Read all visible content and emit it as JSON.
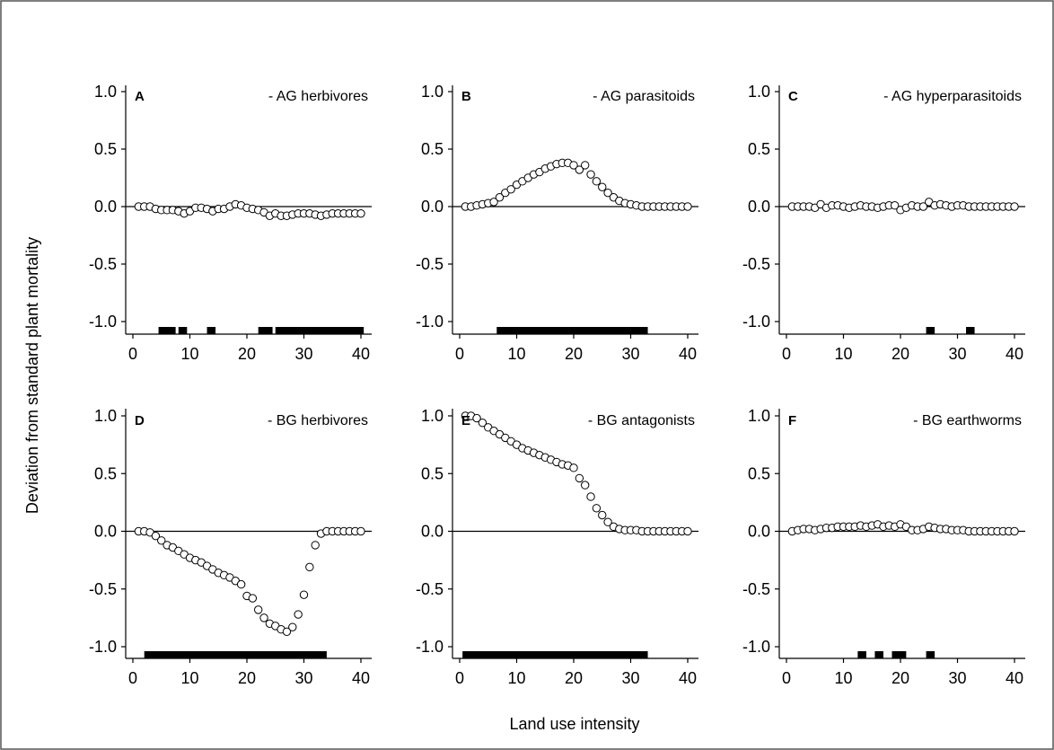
{
  "xlabel": "Land use intensity",
  "ylabel": "Deviation from standard plant mortality",
  "chart_data": [
    {
      "type": "scatter",
      "letter": "A",
      "title": "- AG herbivores",
      "xlim": [
        0,
        40
      ],
      "ylim": [
        -1.1,
        1.0
      ],
      "x_ticks": [
        0,
        10,
        20,
        30,
        40
      ],
      "y_ticks": [
        1.0,
        0.5,
        0.0,
        -0.5,
        -1.0
      ],
      "x_tick_labels": [
        "0",
        "10",
        "20",
        "30",
        "40"
      ],
      "y_tick_labels": [
        "1.0",
        "0.5",
        "0.0",
        "-0.5",
        "-1.0"
      ],
      "reference_line": 0,
      "x": [
        1,
        2,
        3,
        4,
        5,
        6,
        7,
        8,
        9,
        10,
        11,
        12,
        13,
        14,
        15,
        16,
        17,
        18,
        19,
        20,
        21,
        22,
        23,
        24,
        25,
        26,
        27,
        28,
        29,
        30,
        31,
        32,
        33,
        34,
        35,
        36,
        37,
        38,
        39,
        40
      ],
      "y": [
        0,
        0,
        0,
        -0.02,
        -0.03,
        -0.03,
        -0.03,
        -0.04,
        -0.06,
        -0.04,
        -0.01,
        -0.01,
        -0.02,
        -0.04,
        -0.02,
        -0.02,
        0.0,
        0.02,
        0.01,
        -0.01,
        -0.02,
        -0.03,
        -0.05,
        -0.08,
        -0.06,
        -0.08,
        -0.08,
        -0.07,
        -0.06,
        -0.06,
        -0.06,
        -0.07,
        -0.08,
        -0.07,
        -0.06,
        -0.06,
        -0.06,
        -0.06,
        -0.06,
        -0.06
      ],
      "significance_ranges": [
        [
          4.5,
          7.5
        ],
        [
          8,
          9.5
        ],
        [
          13,
          14.5
        ],
        [
          22,
          24.5
        ],
        [
          25,
          40.5
        ]
      ]
    },
    {
      "type": "scatter",
      "letter": "B",
      "title": "- AG parasitoids",
      "xlim": [
        0,
        40
      ],
      "ylim": [
        -1.1,
        1.0
      ],
      "x_ticks": [
        0,
        10,
        20,
        30,
        40
      ],
      "y_ticks": [
        1.0,
        0.5,
        0.0,
        -0.5,
        -1.0
      ],
      "x_tick_labels": [
        "0",
        "10",
        "20",
        "30",
        "40"
      ],
      "y_tick_labels": [
        "1.0",
        "0.5",
        "0.0",
        "-0.5",
        "-1.0"
      ],
      "reference_line": 0,
      "x": [
        1,
        2,
        3,
        4,
        5,
        6,
        7,
        8,
        9,
        10,
        11,
        12,
        13,
        14,
        15,
        16,
        17,
        18,
        19,
        20,
        21,
        22,
        23,
        24,
        25,
        26,
        27,
        28,
        29,
        30,
        31,
        32,
        33,
        34,
        35,
        36,
        37,
        38,
        39,
        40
      ],
      "y": [
        0,
        0,
        0.01,
        0.02,
        0.03,
        0.04,
        0.08,
        0.12,
        0.15,
        0.19,
        0.22,
        0.25,
        0.28,
        0.3,
        0.33,
        0.35,
        0.37,
        0.38,
        0.38,
        0.36,
        0.32,
        0.36,
        0.28,
        0.22,
        0.17,
        0.12,
        0.08,
        0.05,
        0.03,
        0.02,
        0.01,
        0,
        0,
        0,
        0,
        0,
        0,
        0,
        0,
        0
      ],
      "significance_ranges": [
        [
          6.5,
          33
        ]
      ]
    },
    {
      "type": "scatter",
      "letter": "C",
      "title": "- AG hyperparasitoids",
      "xlim": [
        0,
        40
      ],
      "ylim": [
        -1.1,
        1.0
      ],
      "x_ticks": [
        0,
        10,
        20,
        30,
        40
      ],
      "y_ticks": [
        1.0,
        0.5,
        0.0,
        -0.5,
        -1.0
      ],
      "x_tick_labels": [
        "0",
        "10",
        "20",
        "30",
        "40"
      ],
      "y_tick_labels": [
        "1.0",
        "0.5",
        "0.0",
        "-0.5",
        "-1.0"
      ],
      "reference_line": 0,
      "x": [
        1,
        2,
        3,
        4,
        5,
        6,
        7,
        8,
        9,
        10,
        11,
        12,
        13,
        14,
        15,
        16,
        17,
        18,
        19,
        20,
        21,
        22,
        23,
        24,
        25,
        26,
        27,
        28,
        29,
        30,
        31,
        32,
        33,
        34,
        35,
        36,
        37,
        38,
        39,
        40
      ],
      "y": [
        0,
        0,
        0,
        0,
        -0.01,
        0.02,
        -0.01,
        0.01,
        0.01,
        0,
        -0.01,
        0,
        0.01,
        0,
        0,
        -0.01,
        0,
        0.01,
        0.01,
        -0.03,
        -0.01,
        0.01,
        0,
        0,
        0.04,
        0.01,
        0.02,
        0.01,
        0,
        0.01,
        0.01,
        0,
        0,
        0,
        0,
        0,
        0,
        0,
        0,
        0
      ],
      "significance_ranges": [
        [
          24.5,
          26
        ],
        [
          31.5,
          33
        ]
      ]
    },
    {
      "type": "scatter",
      "letter": "D",
      "title": "- BG herbivores",
      "xlim": [
        0,
        40
      ],
      "ylim": [
        -1.1,
        1.0
      ],
      "x_ticks": [
        0,
        10,
        20,
        30,
        40
      ],
      "y_ticks": [
        1.0,
        0.5,
        0.0,
        -0.5,
        -1.0
      ],
      "x_tick_labels": [
        "0",
        "10",
        "20",
        "30",
        "40"
      ],
      "y_tick_labels": [
        "1.0",
        "0.5",
        "0.0",
        "-0.5",
        "-1.0"
      ],
      "reference_line": 0,
      "x": [
        1,
        2,
        3,
        4,
        5,
        6,
        7,
        8,
        9,
        10,
        11,
        12,
        13,
        14,
        15,
        16,
        17,
        18,
        19,
        20,
        21,
        22,
        23,
        24,
        25,
        26,
        27,
        28,
        29,
        30,
        31,
        32,
        33,
        34,
        35,
        36,
        37,
        38,
        39,
        40
      ],
      "y": [
        0,
        0,
        -0.01,
        -0.04,
        -0.08,
        -0.12,
        -0.14,
        -0.17,
        -0.2,
        -0.23,
        -0.25,
        -0.27,
        -0.3,
        -0.33,
        -0.36,
        -0.38,
        -0.4,
        -0.43,
        -0.46,
        -0.56,
        -0.58,
        -0.68,
        -0.75,
        -0.8,
        -0.82,
        -0.85,
        -0.87,
        -0.83,
        -0.72,
        -0.55,
        -0.31,
        -0.12,
        -0.02,
        0,
        0,
        0,
        0,
        0,
        0,
        0
      ],
      "significance_ranges": [
        [
          2,
          34
        ]
      ]
    },
    {
      "type": "scatter",
      "letter": "E",
      "title": "- BG antagonists",
      "xlim": [
        0,
        40
      ],
      "ylim": [
        -1.1,
        1.0
      ],
      "x_ticks": [
        0,
        10,
        20,
        30,
        40
      ],
      "y_ticks": [
        1.0,
        0.5,
        0.0,
        -0.5,
        -1.0
      ],
      "x_tick_labels": [
        "0",
        "10",
        "20",
        "30",
        "40"
      ],
      "y_tick_labels": [
        "1.0",
        "0.5",
        "0.0",
        "-0.5",
        "-1.0"
      ],
      "reference_line": 0,
      "x": [
        1,
        2,
        3,
        4,
        5,
        6,
        7,
        8,
        9,
        10,
        11,
        12,
        13,
        14,
        15,
        16,
        17,
        18,
        19,
        20,
        21,
        22,
        23,
        24,
        25,
        26,
        27,
        28,
        29,
        30,
        31,
        32,
        33,
        34,
        35,
        36,
        37,
        38,
        39,
        40
      ],
      "y": [
        1.0,
        1.0,
        0.98,
        0.94,
        0.9,
        0.87,
        0.84,
        0.81,
        0.78,
        0.75,
        0.72,
        0.7,
        0.68,
        0.66,
        0.64,
        0.62,
        0.6,
        0.58,
        0.57,
        0.55,
        0.46,
        0.4,
        0.3,
        0.2,
        0.14,
        0.08,
        0.04,
        0.02,
        0.01,
        0.01,
        0.01,
        0,
        0,
        0,
        0,
        0,
        0,
        0,
        0,
        0
      ],
      "significance_ranges": [
        [
          0.5,
          33
        ]
      ]
    },
    {
      "type": "scatter",
      "letter": "F",
      "title": "- BG earthworms",
      "xlim": [
        0,
        40
      ],
      "ylim": [
        -1.1,
        1.0
      ],
      "x_ticks": [
        0,
        10,
        20,
        30,
        40
      ],
      "y_ticks": [
        1.0,
        0.5,
        0.0,
        -0.5,
        -1.0
      ],
      "x_tick_labels": [
        "0",
        "10",
        "20",
        "30",
        "40"
      ],
      "y_tick_labels": [
        "1.0",
        "0.5",
        "0.0",
        "-0.5",
        "-1.0"
      ],
      "reference_line": 0,
      "x": [
        1,
        2,
        3,
        4,
        5,
        6,
        7,
        8,
        9,
        10,
        11,
        12,
        13,
        14,
        15,
        16,
        17,
        18,
        19,
        20,
        21,
        22,
        23,
        24,
        25,
        26,
        27,
        28,
        29,
        30,
        31,
        32,
        33,
        34,
        35,
        36,
        37,
        38,
        39,
        40
      ],
      "y": [
        0,
        0.01,
        0.02,
        0.02,
        0.01,
        0.02,
        0.03,
        0.03,
        0.04,
        0.04,
        0.04,
        0.04,
        0.05,
        0.04,
        0.05,
        0.06,
        0.04,
        0.05,
        0.04,
        0.06,
        0.04,
        0.01,
        0.01,
        0.02,
        0.04,
        0.03,
        0.02,
        0.02,
        0.01,
        0.01,
        0.01,
        0,
        0,
        0,
        0,
        0,
        0,
        0,
        0,
        0
      ],
      "significance_ranges": [
        [
          12.5,
          14
        ],
        [
          15.5,
          17
        ],
        [
          18.5,
          21
        ],
        [
          24.5,
          26
        ]
      ]
    }
  ]
}
